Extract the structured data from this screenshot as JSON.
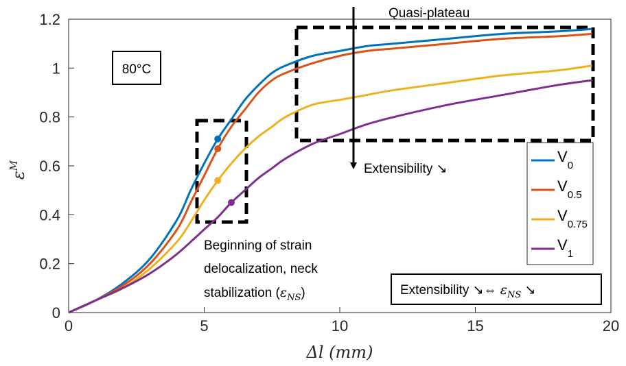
{
  "chart_data": {
    "type": "line",
    "xlabel": "Δl (mm)",
    "ylabel": "ε^M",
    "xlim": [
      0,
      20
    ],
    "ylim": [
      0,
      1.2
    ],
    "xticks": [
      "0",
      "5",
      "10",
      "15",
      "20"
    ],
    "yticks": [
      "0",
      "0.2",
      "0.4",
      "0.6",
      "0.8",
      "1",
      "1.2"
    ],
    "grid": false,
    "legend_position": "right",
    "series": [
      {
        "name": "V",
        "subscript": "0",
        "color": "#0072BD",
        "x": [
          0,
          1,
          2,
          3,
          4,
          4.5,
          5,
          5.5,
          6,
          6.5,
          7,
          7.5,
          8,
          9,
          10,
          11,
          12,
          14,
          16,
          18,
          19.3
        ],
        "y": [
          0,
          0.05,
          0.12,
          0.22,
          0.38,
          0.5,
          0.61,
          0.71,
          0.79,
          0.87,
          0.93,
          0.98,
          1.01,
          1.05,
          1.07,
          1.09,
          1.1,
          1.12,
          1.14,
          1.15,
          1.16
        ],
        "marker": {
          "x": 5.5,
          "y": 0.71
        }
      },
      {
        "name": "V",
        "subscript": "0.5",
        "color": "#D95319",
        "x": [
          0,
          1,
          2,
          3,
          4,
          4.5,
          5,
          5.5,
          6,
          6.5,
          7,
          7.5,
          8,
          9,
          10,
          11,
          12,
          14,
          16,
          18,
          19.3
        ],
        "y": [
          0,
          0.05,
          0.11,
          0.2,
          0.34,
          0.45,
          0.56,
          0.67,
          0.76,
          0.83,
          0.9,
          0.95,
          0.98,
          1.02,
          1.05,
          1.07,
          1.08,
          1.1,
          1.12,
          1.13,
          1.14
        ],
        "marker": {
          "x": 5.5,
          "y": 0.67
        }
      },
      {
        "name": "V",
        "subscript": "0.75",
        "color": "#EDB120",
        "x": [
          0,
          1,
          2,
          3,
          4,
          4.5,
          5,
          5.5,
          6,
          6.5,
          7,
          7.5,
          8,
          9,
          10,
          11,
          12,
          14,
          16,
          18,
          19.3
        ],
        "y": [
          0,
          0.05,
          0.1,
          0.18,
          0.29,
          0.37,
          0.46,
          0.54,
          0.61,
          0.67,
          0.72,
          0.76,
          0.8,
          0.85,
          0.87,
          0.89,
          0.91,
          0.94,
          0.97,
          0.99,
          1.01
        ],
        "marker": {
          "x": 5.5,
          "y": 0.54
        }
      },
      {
        "name": "V",
        "subscript": "1",
        "color": "#7E2F8E",
        "x": [
          0,
          1,
          2,
          3,
          4,
          5,
          5.5,
          6,
          6.5,
          7,
          7.5,
          8,
          9,
          10,
          11,
          12,
          14,
          16,
          18,
          19.3
        ],
        "y": [
          0,
          0.05,
          0.1,
          0.16,
          0.24,
          0.34,
          0.39,
          0.45,
          0.5,
          0.55,
          0.59,
          0.63,
          0.69,
          0.73,
          0.77,
          0.8,
          0.85,
          0.89,
          0.93,
          0.95
        ],
        "marker": {
          "x": 6,
          "y": 0.45
        }
      }
    ],
    "annotations": {
      "temperature": "80°C",
      "quasi_plateau": "Quasi-plateau",
      "extensibility_arrow": "Extensibility ↘",
      "beginning_line1": "Beginning of strain",
      "beginning_line2": "delocalization, neck",
      "beginning_line3_prefix": "stabilization (",
      "epsilon_symbol": "ε",
      "ns_subscript": "NS",
      "beginning_line3_suffix": ")",
      "extensibility_relation_prefix": "Extensibility ↘⇔ ",
      "extensibility_relation_suffix": " ↘"
    }
  }
}
